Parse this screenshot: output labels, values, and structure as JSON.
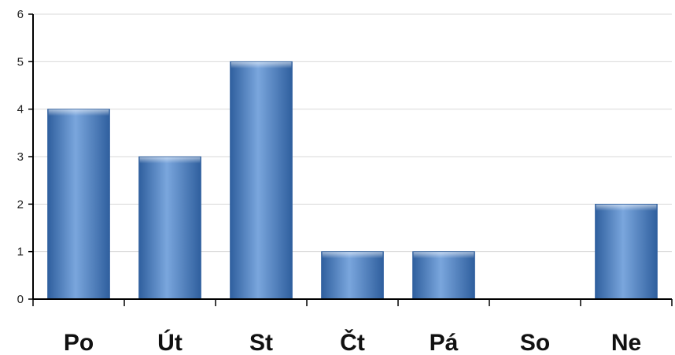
{
  "chart_data": {
    "type": "bar",
    "title": "",
    "xlabel": "",
    "ylabel": "",
    "categories": [
      "Po",
      "Út",
      "St",
      "Čt",
      "Pá",
      "So",
      "Ne"
    ],
    "values": [
      4,
      3,
      5,
      1,
      1,
      0,
      2
    ],
    "ylim": [
      0,
      6
    ],
    "yticks": [
      "0",
      "1",
      "2",
      "3",
      "4",
      "5",
      "6"
    ],
    "grid": true,
    "legend": "none",
    "colors": {
      "bar": "#4a7ebb",
      "bar_light": "#7aa6dd",
      "bar_dark": "#2f5f9e",
      "grid": "#d9d9d9",
      "axis": "#000000"
    }
  }
}
